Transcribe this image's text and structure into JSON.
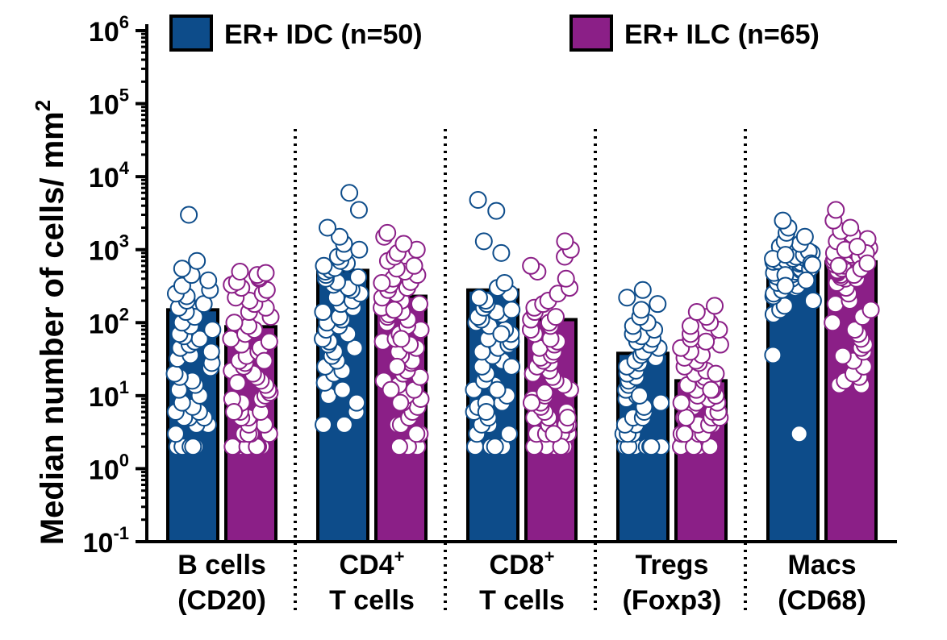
{
  "chart_data": {
    "type": "bar",
    "scale": "log",
    "ylabel": "Median number of cells/ mm",
    "ylabel_sup": "2",
    "yticks": [
      {
        "base": "10",
        "exp": "-1",
        "value": 0.1
      },
      {
        "base": "10",
        "exp": "0",
        "value": 1
      },
      {
        "base": "10",
        "exp": "1",
        "value": 10
      },
      {
        "base": "10",
        "exp": "2",
        "value": 100
      },
      {
        "base": "10",
        "exp": "3",
        "value": 1000
      },
      {
        "base": "10",
        "exp": "4",
        "value": 10000
      },
      {
        "base": "10",
        "exp": "5",
        "value": 100000
      },
      {
        "base": "10",
        "exp": "6",
        "value": 1000000
      }
    ],
    "ylim": [
      0.1,
      1000000
    ],
    "colors": {
      "idc": "#0d4c8a",
      "ilc": "#8b1f87"
    },
    "legend": [
      {
        "label": "ER+ IDC (n=50)",
        "color": "#0d4c8a"
      },
      {
        "label": "ER+ ILC (n=65)",
        "color": "#8b1f87"
      }
    ],
    "categories": [
      {
        "line1": "B cells",
        "line1_sup": "",
        "line2": "(CD20)"
      },
      {
        "line1": "CD4",
        "line1_sup": "+",
        "line2": "T cells"
      },
      {
        "line1": "CD8",
        "line1_sup": "+",
        "line2": "T cells"
      },
      {
        "line1": "Tregs",
        "line1_sup": "",
        "line2": "(Foxp3)"
      },
      {
        "line1": "Macs",
        "line1_sup": "",
        "line2": "(CD68)"
      }
    ],
    "series": [
      {
        "key": "idc",
        "values": [
          150,
          520,
          280,
          38,
          620
        ]
      },
      {
        "key": "ilc",
        "values": [
          88,
          230,
          110,
          16,
          680
        ]
      }
    ],
    "points": {
      "idc": [
        [
          2,
          2,
          2,
          2,
          2,
          2,
          3,
          4,
          4,
          5,
          5,
          5,
          6,
          6,
          7,
          8,
          10,
          12,
          14,
          16,
          18,
          20,
          24,
          28,
          32,
          36,
          40,
          45,
          50,
          55,
          60,
          65,
          70,
          80,
          90,
          100,
          120,
          140,
          160,
          180,
          200,
          230,
          250,
          280,
          320,
          380,
          450,
          550,
          700,
          3000
        ],
        [
          4,
          4,
          6,
          8,
          10,
          12,
          15,
          20,
          22,
          25,
          30,
          35,
          40,
          45,
          50,
          55,
          60,
          70,
          80,
          90,
          100,
          110,
          120,
          140,
          160,
          180,
          200,
          220,
          250,
          280,
          300,
          330,
          360,
          400,
          420,
          450,
          500,
          530,
          560,
          600,
          650,
          700,
          800,
          900,
          1000,
          1200,
          1500,
          2000,
          3500,
          6000
        ],
        [
          2,
          2,
          2,
          2,
          3,
          3,
          4,
          4,
          5,
          6,
          7,
          8,
          10,
          12,
          14,
          16,
          20,
          25,
          30,
          35,
          40,
          45,
          50,
          55,
          60,
          70,
          80,
          90,
          100,
          110,
          120,
          130,
          140,
          150,
          160,
          180,
          200,
          220,
          250,
          300,
          350,
          900,
          1300,
          3400,
          4800,
          70,
          25,
          12,
          8,
          6
        ],
        [
          2,
          2,
          2,
          2,
          2,
          2,
          2,
          2,
          2,
          2,
          2,
          3,
          3,
          3,
          4,
          4,
          5,
          5,
          6,
          7,
          8,
          9,
          10,
          12,
          14,
          16,
          18,
          20,
          22,
          25,
          28,
          30,
          33,
          36,
          40,
          45,
          50,
          55,
          60,
          65,
          70,
          80,
          90,
          100,
          120,
          150,
          180,
          220,
          280,
          10
        ],
        [
          3,
          36,
          130,
          150,
          170,
          200,
          230,
          250,
          280,
          300,
          320,
          350,
          380,
          400,
          430,
          460,
          480,
          500,
          520,
          550,
          580,
          600,
          620,
          640,
          660,
          680,
          700,
          720,
          750,
          780,
          800,
          850,
          900,
          950,
          1000,
          1100,
          1200,
          1300,
          1500,
          1700,
          2000,
          2500,
          450,
          550,
          650,
          750,
          850,
          320,
          380,
          620
        ]
      ],
      "ilc": [
        [
          2,
          2,
          2,
          2,
          2,
          2,
          2,
          2,
          2,
          2,
          3,
          3,
          3,
          3,
          3,
          4,
          4,
          5,
          5,
          6,
          6,
          7,
          8,
          9,
          10,
          11,
          12,
          14,
          16,
          18,
          20,
          22,
          25,
          28,
          30,
          35,
          40,
          45,
          50,
          55,
          60,
          70,
          80,
          90,
          100,
          120,
          140,
          160,
          180,
          200,
          220,
          250,
          280,
          300,
          330,
          360,
          400,
          420,
          450,
          480,
          500,
          30,
          15,
          9,
          6
        ],
        [
          2,
          2,
          2,
          2,
          3,
          3,
          4,
          4,
          5,
          6,
          7,
          8,
          9,
          10,
          12,
          14,
          16,
          18,
          20,
          22,
          25,
          28,
          30,
          35,
          40,
          45,
          50,
          55,
          60,
          70,
          80,
          90,
          100,
          110,
          120,
          130,
          140,
          150,
          160,
          180,
          200,
          220,
          250,
          280,
          300,
          330,
          360,
          400,
          450,
          500,
          550,
          600,
          700,
          800,
          900,
          1000,
          1200,
          1500,
          1700,
          8,
          12,
          25,
          60,
          150,
          350
        ],
        [
          2,
          2,
          2,
          2,
          2,
          2,
          2,
          2,
          2,
          2,
          2,
          3,
          3,
          3,
          3,
          4,
          4,
          4,
          5,
          5,
          6,
          6,
          7,
          8,
          9,
          10,
          11,
          12,
          14,
          16,
          18,
          20,
          22,
          25,
          28,
          30,
          33,
          36,
          40,
          45,
          50,
          55,
          60,
          70,
          80,
          90,
          100,
          110,
          120,
          140,
          160,
          180,
          200,
          250,
          300,
          400,
          500,
          600,
          800,
          1000,
          1300,
          2,
          3,
          5,
          8
        ],
        [
          2,
          2,
          2,
          2,
          2,
          2,
          2,
          2,
          2,
          2,
          2,
          2,
          2,
          2,
          2,
          3,
          3,
          3,
          3,
          3,
          4,
          4,
          4,
          5,
          5,
          5,
          6,
          6,
          7,
          7,
          8,
          8,
          9,
          10,
          10,
          12,
          12,
          14,
          15,
          16,
          18,
          20,
          22,
          25,
          28,
          30,
          33,
          36,
          40,
          45,
          50,
          55,
          60,
          70,
          80,
          90,
          100,
          120,
          140,
          170,
          3,
          5,
          8,
          12,
          20
        ],
        [
          14,
          14,
          16,
          18,
          20,
          25,
          30,
          35,
          40,
          45,
          50,
          60,
          70,
          80,
          100,
          120,
          150,
          180,
          200,
          250,
          300,
          350,
          400,
          420,
          450,
          480,
          500,
          520,
          550,
          580,
          600,
          620,
          650,
          680,
          700,
          720,
          750,
          780,
          800,
          850,
          900,
          950,
          1000,
          1050,
          1100,
          1150,
          1200,
          1300,
          1400,
          1600,
          1800,
          2000,
          2500,
          3500,
          400,
          500,
          600,
          700,
          800,
          900,
          1000,
          1100,
          450,
          550,
          650
        ]
      ]
    }
  }
}
